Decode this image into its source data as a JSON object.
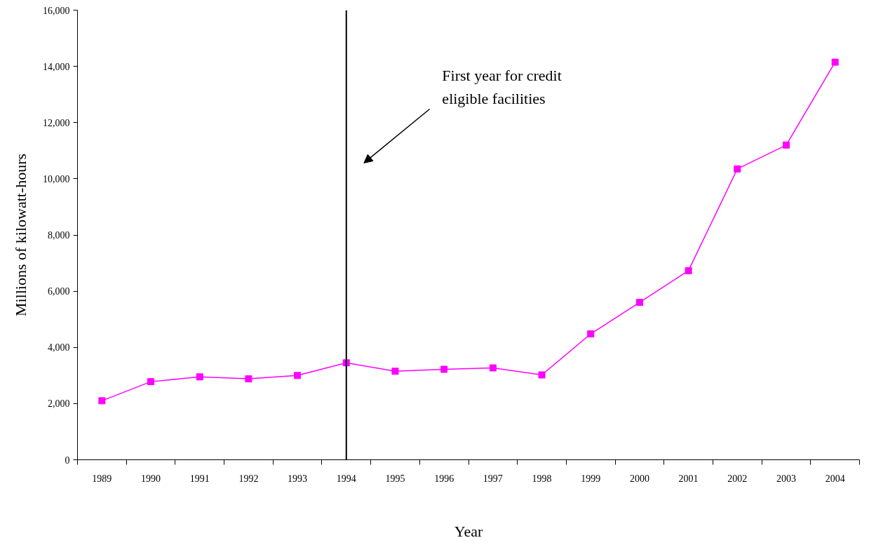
{
  "chart_data": {
    "type": "line",
    "xlabel": "Year",
    "ylabel": "Millions of kilowatt-hours",
    "categories": [
      "1989",
      "1990",
      "1991",
      "1992",
      "1993",
      "1994",
      "1995",
      "1996",
      "1997",
      "1998",
      "1999",
      "2000",
      "2001",
      "2002",
      "2003",
      "2004"
    ],
    "series": [
      {
        "color": "#ff00ff",
        "values": [
          2100,
          2780,
          2950,
          2880,
          3000,
          3450,
          3150,
          3220,
          3270,
          3020,
          4480,
          5600,
          6730,
          10350,
          11200,
          14150
        ]
      }
    ],
    "ylim": [
      0,
      16000
    ],
    "yticks": [
      0,
      {
        "value": 2000,
        "label": "2,000"
      },
      {
        "value": 4000,
        "label": "4,000"
      },
      {
        "value": 6000,
        "label": "6,000"
      },
      {
        "value": 8000,
        "label": "8,000"
      },
      {
        "value": 10000,
        "label": "10,000"
      },
      {
        "value": 12000,
        "label": "12,000"
      },
      {
        "value": 14000,
        "label": "14,000"
      },
      {
        "value": 16000,
        "label": "16,000"
      }
    ],
    "ref_lines": [
      {
        "axis": "x",
        "value": "1994",
        "color": "#000000"
      }
    ],
    "annotations": [
      "First year for credit\neligible facilities"
    ],
    "grid": false,
    "marker": "square",
    "line_style": "solid"
  }
}
